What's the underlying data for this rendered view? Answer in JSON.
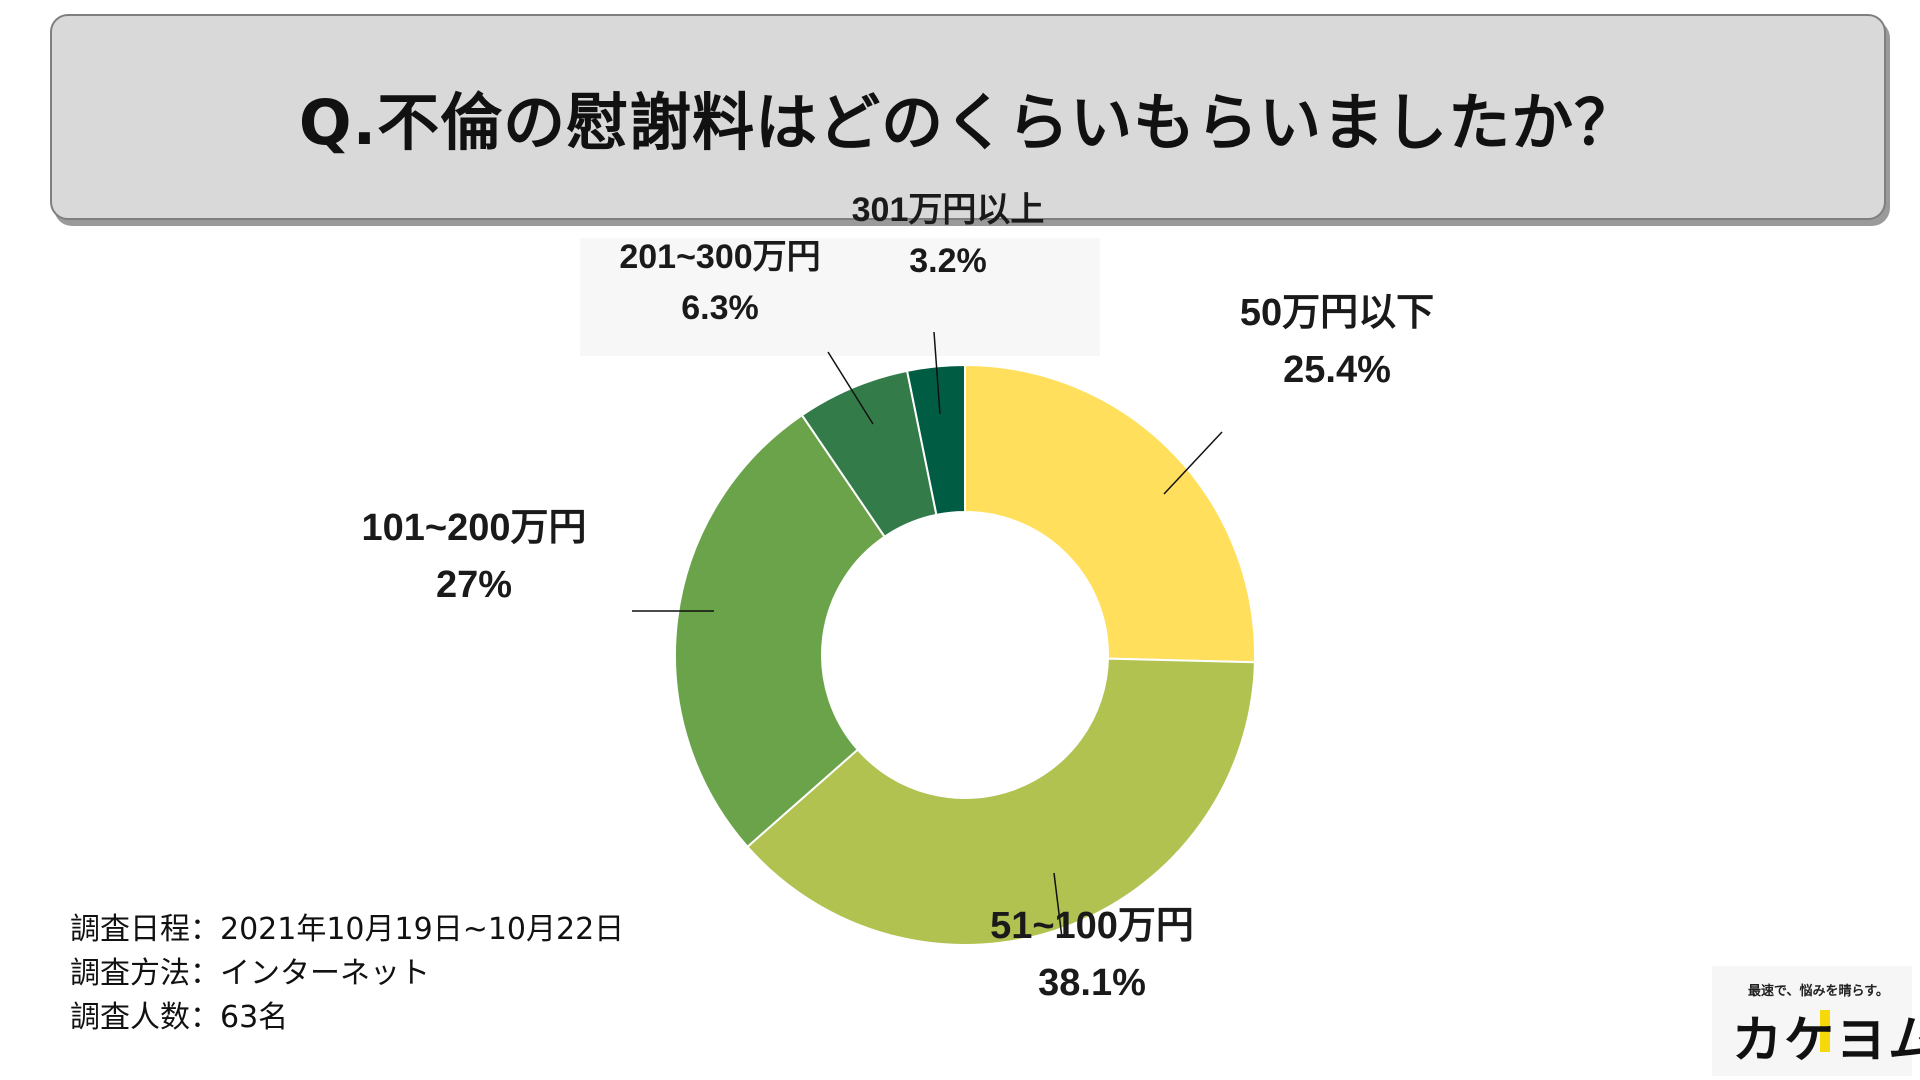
{
  "header": {
    "title": "Q.不倫の慰謝料はどのくらいもらいましたか？"
  },
  "chart_data": {
    "type": "pie",
    "donut": true,
    "categories": [
      "50万円以下",
      "51~100万円",
      "101~200万円",
      "201~300万円",
      "301万円以上"
    ],
    "values": [
      25.4,
      38.1,
      27,
      6.3,
      3.2
    ],
    "value_labels": [
      "25.4%",
      "38.1%",
      "27%",
      "6.3%",
      "3.2%"
    ],
    "colors": [
      "#ffdf5c",
      "#b1c251",
      "#6ba34a",
      "#337c4a",
      "#005c42"
    ],
    "legend": "none"
  },
  "notes": {
    "schedule": "調査日程：2021年10月19日~10月22日",
    "method": "調査方法：インターネット",
    "count": "調査人数：63名"
  },
  "logo": {
    "tagline": "最速で、悩みを晴らす。",
    "name": "カケヨム"
  }
}
